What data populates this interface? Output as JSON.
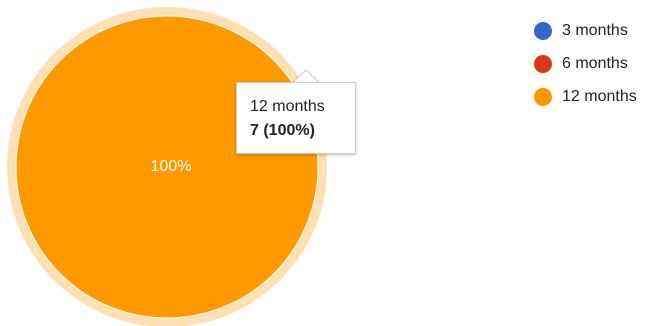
{
  "chart_data": {
    "type": "pie",
    "categories": [
      "3 months",
      "6 months",
      "12 months"
    ],
    "values": [
      0,
      0,
      7
    ],
    "slice_labels": [
      "",
      "",
      "100%"
    ],
    "colors": [
      "#3366cc",
      "#dc3912",
      "#ff9900"
    ],
    "legend_position": "right",
    "tooltip": {
      "label": "12 months",
      "value": "7 (100%)"
    }
  }
}
